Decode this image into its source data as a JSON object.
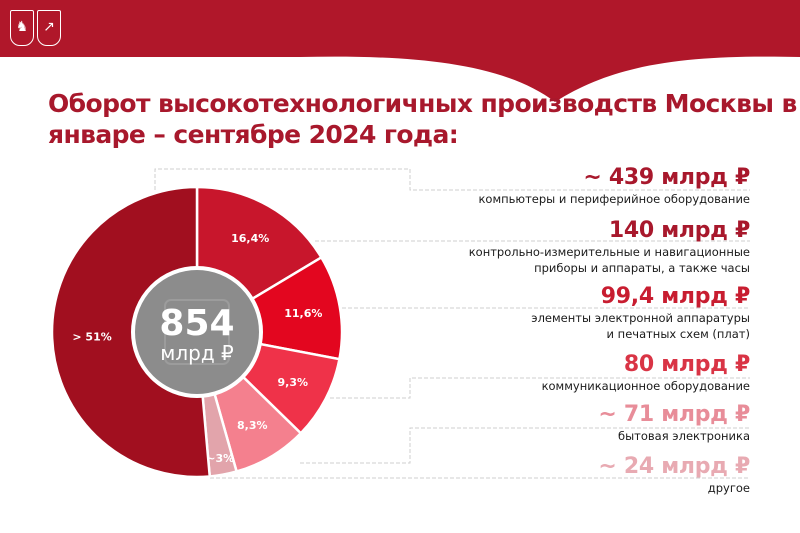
{
  "header": {
    "logos": [
      "moscow-coat-of-arms",
      "statistics-logo"
    ],
    "band_color": "#b0172a"
  },
  "title": "Оборот высокотехнологичных производств Москвы в январе – сентябре 2024 года:",
  "chart_data": {
    "type": "pie",
    "title": "Оборот высокотехнологичных производств Москвы в январе – сентябре 2024 года:",
    "center_value": "854",
    "center_unit": "млрд ₽",
    "slices": [
      {
        "label": "> 51%",
        "percent": 51.4,
        "value": "~ 439 млрд ₽",
        "category": "компьютеры и периферийное оборудование",
        "color": "#a10f1f"
      },
      {
        "label": "16,4%",
        "percent": 16.4,
        "value": "140 млрд ₽",
        "category": "контрольно-измерительные и навигационные\nприборы и аппараты, а также часы",
        "color": "#c8162c"
      },
      {
        "label": "11,6%",
        "percent": 11.6,
        "value": "99,4 млрд ₽",
        "category": "элементы электронной аппаратуры\nи печатных схем (плат)",
        "color": "#e3061f"
      },
      {
        "label": "9,3%",
        "percent": 9.3,
        "value": "80 млрд ₽",
        "category": "коммуникационное оборудование",
        "color": "#ef3249"
      },
      {
        "label": "8,3%",
        "percent": 8.3,
        "value": "~ 71 млрд ₽",
        "category": "бытовая электроника",
        "color": "#f4808e"
      },
      {
        "label": "~3%",
        "percent": 3.0,
        "value": "~ 24 млрд ₽",
        "category": "другое",
        "color": "#e2a4ab"
      }
    ],
    "value_colors": [
      "#a8182c",
      "#a8182c",
      "#c81d30",
      "#d93445",
      "#e88d99",
      "#e8aab2"
    ],
    "center_color": "#8c8c8c"
  }
}
